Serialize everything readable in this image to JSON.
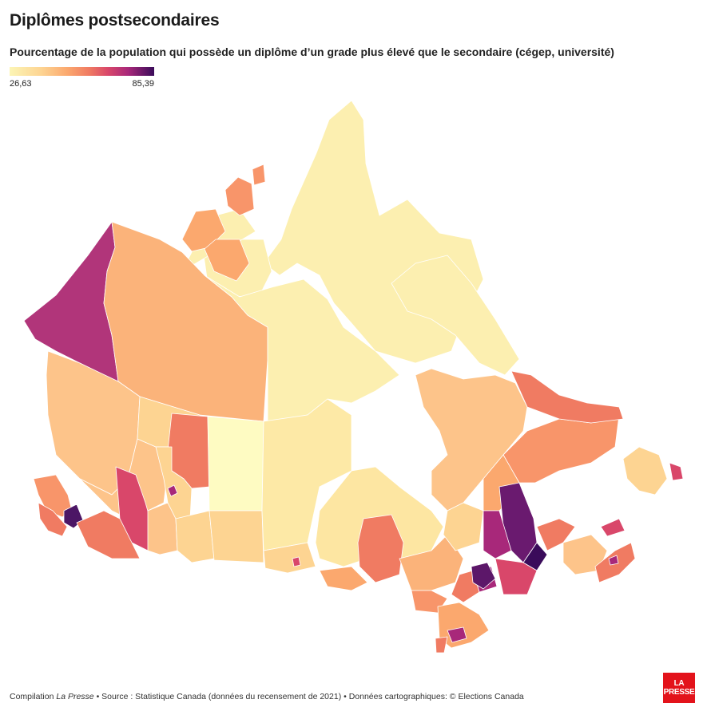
{
  "header": {
    "title": "Diplômes postsecondaires",
    "subtitle": "Pourcentage de la population qui possède un diplôme d’un grade plus élevé que le secondaire (cégep, université)"
  },
  "legend": {
    "min_label": "26,63",
    "max_label": "85,39",
    "colors": [
      "#fcf5b5",
      "#fdd492",
      "#fba86e",
      "#f07b62",
      "#d9476a",
      "#a8287a",
      "#3a0b5a"
    ]
  },
  "footer": {
    "prefix": "Compilation ",
    "publisher": "La Presse",
    "rest": " • Source : Statistique Canada (données du recensement de 2021) • Données cartographiques: © Elections Canada"
  },
  "logo": {
    "line1": "LA",
    "line2": "PRESSE"
  }
}
